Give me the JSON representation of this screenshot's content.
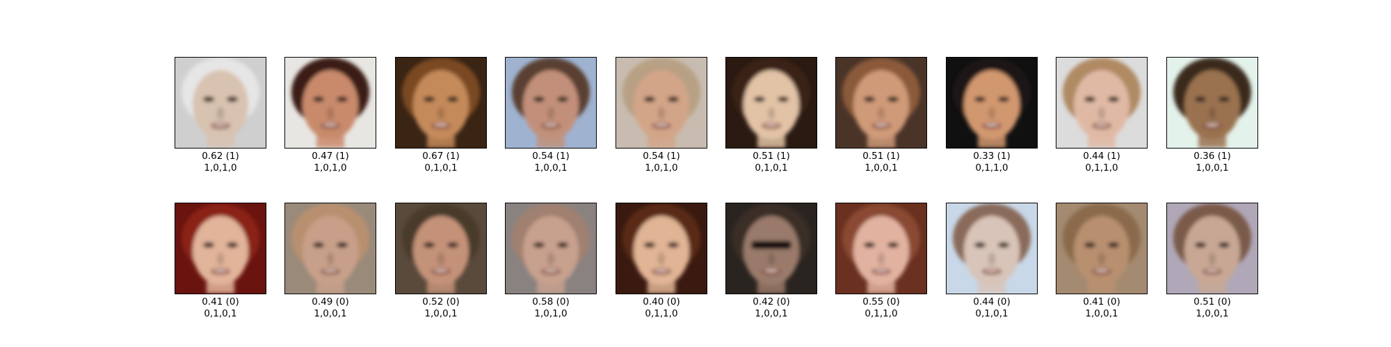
{
  "rows": [
    {
      "samples": [
        {
          "score": "0.62 (1)",
          "attrs": "1,0,1,0",
          "skin": "#d8c2b0",
          "bg": "#cfcfcf",
          "hair": "#e6e6e6",
          "dark": false
        },
        {
          "score": "0.47 (1)",
          "attrs": "1,0,1,0",
          "skin": "#c98a6c",
          "bg": "#e8e6e2",
          "hair": "#3a1e12",
          "dark": false
        },
        {
          "score": "0.67 (1)",
          "attrs": "0,1,0,1",
          "skin": "#c48a5a",
          "bg": "#3a2414",
          "hair": "#7a4a24",
          "dark": false
        },
        {
          "score": "0.54 (1)",
          "attrs": "1,0,0,1",
          "skin": "#c2907a",
          "bg": "#9fb3d1",
          "hair": "#5a4030",
          "dark": false
        },
        {
          "score": "0.54 (1)",
          "attrs": "1,0,1,0",
          "skin": "#d3a588",
          "bg": "#c8bcb0",
          "hair": "#b8a084",
          "dark": false
        },
        {
          "score": "0.51 (1)",
          "attrs": "0,1,0,1",
          "skin": "#e2c3a6",
          "bg": "#2a1a12",
          "hair": "#3a2418",
          "dark": false
        },
        {
          "score": "0.51 (1)",
          "attrs": "1,0,0,1",
          "skin": "#cf9a78",
          "bg": "#4a3428",
          "hair": "#8a5a3a",
          "dark": false
        },
        {
          "score": "0.33 (1)",
          "attrs": "0,1,1,0",
          "skin": "#d19870",
          "bg": "#101010",
          "hair": "#1a1412",
          "dark": false
        },
        {
          "score": "0.44 (1)",
          "attrs": "0,1,1,0",
          "skin": "#e0b9a4",
          "bg": "#dcdcdc",
          "hair": "#b08a64",
          "dark": false
        },
        {
          "score": "0.36 (1)",
          "attrs": "1,0,0,1",
          "skin": "#9a7250",
          "bg": "#e4f2ec",
          "hair": "#3a2a1a",
          "dark": false
        }
      ]
    },
    {
      "samples": [
        {
          "score": "0.41 (0)",
          "attrs": "0,1,0,1",
          "skin": "#e2b49a",
          "bg": "#6a1410",
          "hair": "#8a2418",
          "dark": false
        },
        {
          "score": "0.49 (0)",
          "attrs": "1,0,0,1",
          "skin": "#c8a08a",
          "bg": "#9a8a7a",
          "hair": "#b89070",
          "dark": false
        },
        {
          "score": "0.52 (0)",
          "attrs": "1,0,0,1",
          "skin": "#c49278",
          "bg": "#5a4a3c",
          "hair": "#4a3a2c",
          "dark": false
        },
        {
          "score": "0.58 (0)",
          "attrs": "1,0,1,0",
          "skin": "#c8a08e",
          "bg": "#8a8280",
          "hair": "#a08070",
          "dark": false
        },
        {
          "score": "0.40 (0)",
          "attrs": "0,1,1,0",
          "skin": "#e0b494",
          "bg": "#3a1a10",
          "hair": "#5a2a14",
          "dark": false
        },
        {
          "score": "0.42 (0)",
          "attrs": "1,0,0,1",
          "skin": "#9a7a6a",
          "bg": "#2a2420",
          "hair": "#3a2e28",
          "dark": true
        },
        {
          "score": "0.55 (0)",
          "attrs": "0,1,1,0",
          "skin": "#e2b2a0",
          "bg": "#6a3020",
          "hair": "#8a4a30",
          "dark": false
        },
        {
          "score": "0.44 (0)",
          "attrs": "0,1,0,1",
          "skin": "#d8c4b8",
          "bg": "#c8d8e8",
          "hair": "#8a6a5a",
          "dark": false
        },
        {
          "score": "0.41 (0)",
          "attrs": "1,0,0,1",
          "skin": "#b89070",
          "bg": "#a48a70",
          "hair": "#8a6a4c",
          "dark": false
        },
        {
          "score": "0.51 (0)",
          "attrs": "1,0,0,1",
          "skin": "#c8a894",
          "bg": "#b0a8b8",
          "hair": "#7a5a4a",
          "dark": false
        }
      ]
    }
  ]
}
